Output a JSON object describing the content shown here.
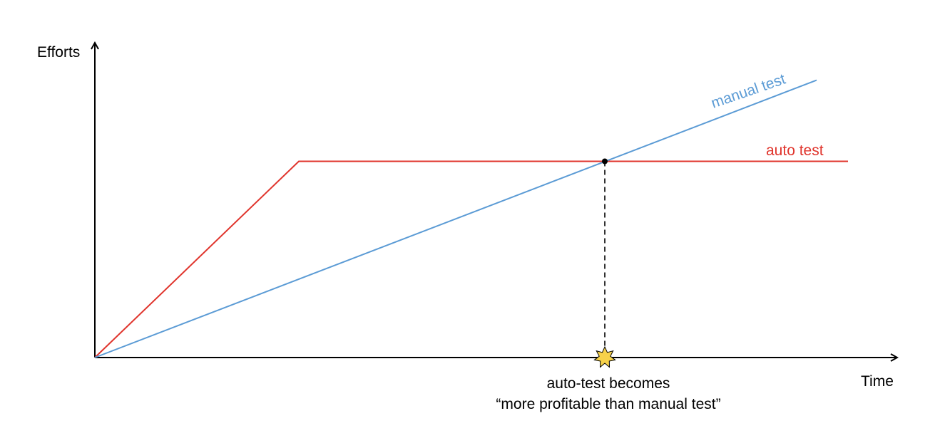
{
  "chart_data": {
    "type": "line",
    "title": "",
    "xlabel": "Time",
    "ylabel": "Efforts",
    "grid": false,
    "legend": "inline labels at line ends",
    "xlim": [
      0,
      10.2
    ],
    "ylim": [
      0,
      9
    ],
    "series": [
      {
        "name": "auto test",
        "color": "#e0342c",
        "points": [
          [
            0,
            0
          ],
          [
            2.6,
            5.8
          ],
          [
            9.6,
            5.8
          ]
        ]
      },
      {
        "name": "manual test",
        "color": "#5b9bd5",
        "points": [
          [
            0,
            0
          ],
          [
            9.2,
            8.2
          ]
        ]
      }
    ],
    "break_even": {
      "x": 6.5,
      "y": 5.8,
      "marker_color": "#f7d24a",
      "note_lines": [
        "auto-test becomes",
        "“more profitable than manual test”"
      ]
    }
  }
}
